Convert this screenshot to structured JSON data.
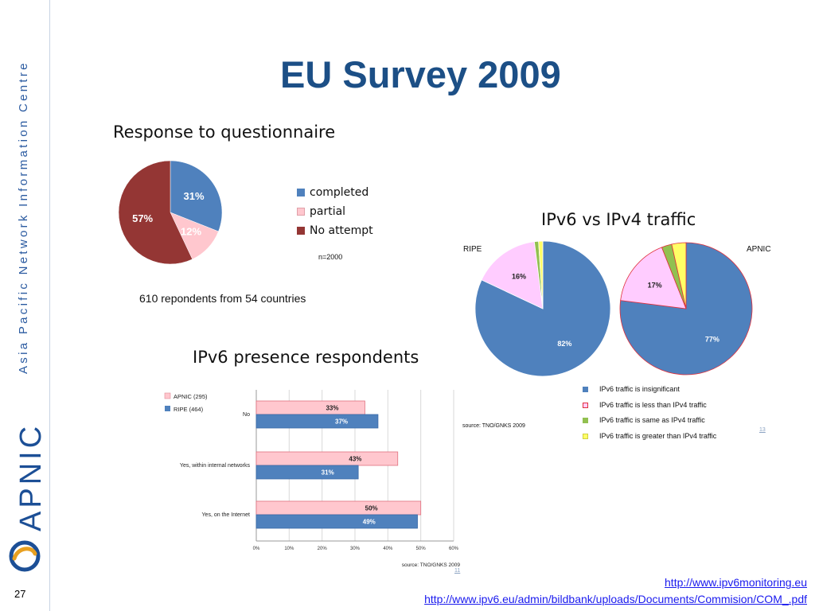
{
  "sidebar": {
    "org_name": "Asia Pacific Network Information Centre",
    "logo_word": "APNIC",
    "page_number": "27"
  },
  "title": "EU Survey 2009",
  "response": {
    "heading": "Response to questionnaire",
    "note_n": "n=2000",
    "respondents_text": "610 repondents from 54 countries"
  },
  "traffic": {
    "heading": "IPv6 vs IPv4 traffic",
    "source": "source: TNO/GNKS 2009",
    "footnote_link": "13"
  },
  "presence": {
    "heading": "IPv6 presence respondents",
    "source": "source: TNO/GNKS 2009",
    "footnote_link": "11"
  },
  "links": [
    "http://www.ipv6monitoring.eu",
    "http://www.ipv6.eu/admin/bildbank/uploads/Documents/Commision/COM_.pdf"
  ],
  "colors": {
    "blue": "#4f81bd",
    "pink": "#ffc7ce",
    "darkred": "#943634",
    "violet": "#ffccff",
    "green": "#92c050",
    "yellow": "#ffff66",
    "title": "#1c4f86"
  },
  "chart_data": [
    {
      "type": "pie",
      "title": "Response to questionnaire",
      "labels": [
        "completed",
        "partial",
        "No attempt"
      ],
      "values": [
        31,
        12,
        57
      ],
      "value_labels": [
        "31%",
        "12%",
        "57%"
      ],
      "colors": [
        "#4f81bd",
        "#ffc7ce",
        "#943634"
      ],
      "legend": "right"
    },
    {
      "type": "pie",
      "title": "RIPE",
      "labels": [
        "IPv6 traffic is insignificant",
        "IPv6 traffic is less than IPv4 traffic",
        "IPv6 traffic is same as IPv4 traffic",
        "IPv6 traffic is greater than IPv4 traffic"
      ],
      "values": [
        82,
        16,
        1,
        1
      ],
      "value_labels": [
        "82%",
        "16%",
        "",
        ""
      ],
      "colors": [
        "#4f81bd",
        "#ffccff",
        "#92c050",
        "#ffff66"
      ]
    },
    {
      "type": "pie",
      "title": "APNIC",
      "labels": [
        "IPv6 traffic is insignificant",
        "IPv6 traffic is less than IPv4 traffic",
        "IPv6 traffic is same as IPv4 traffic",
        "IPv6 traffic is greater than IPv4 traffic"
      ],
      "values": [
        77,
        17,
        2.5,
        3.5
      ],
      "value_labels": [
        "77%",
        "17%",
        "",
        ""
      ],
      "colors": [
        "#4f81bd",
        "#ffccff",
        "#92c050",
        "#ffff66"
      ],
      "legend": "bottom"
    },
    {
      "type": "bar",
      "orientation": "horizontal",
      "title": "IPv6 presence respondents",
      "categories": [
        "No",
        "Yes, within internal networks",
        "Yes, on the Internet"
      ],
      "series": [
        {
          "name": "APNIC (295)",
          "values": [
            33,
            43,
            50
          ],
          "labels": [
            "33%",
            "43%",
            "50%"
          ],
          "color": "#ffc7ce"
        },
        {
          "name": "RIPE (464)",
          "values": [
            37,
            31,
            49
          ],
          "labels": [
            "37%",
            "31%",
            "49%"
          ],
          "color": "#4f81bd"
        }
      ],
      "xlim": [
        0,
        60
      ],
      "xticks": [
        "0%",
        "10%",
        "20%",
        "30%",
        "40%",
        "50%",
        "60%"
      ],
      "grid": true,
      "legend": "top-left"
    }
  ]
}
